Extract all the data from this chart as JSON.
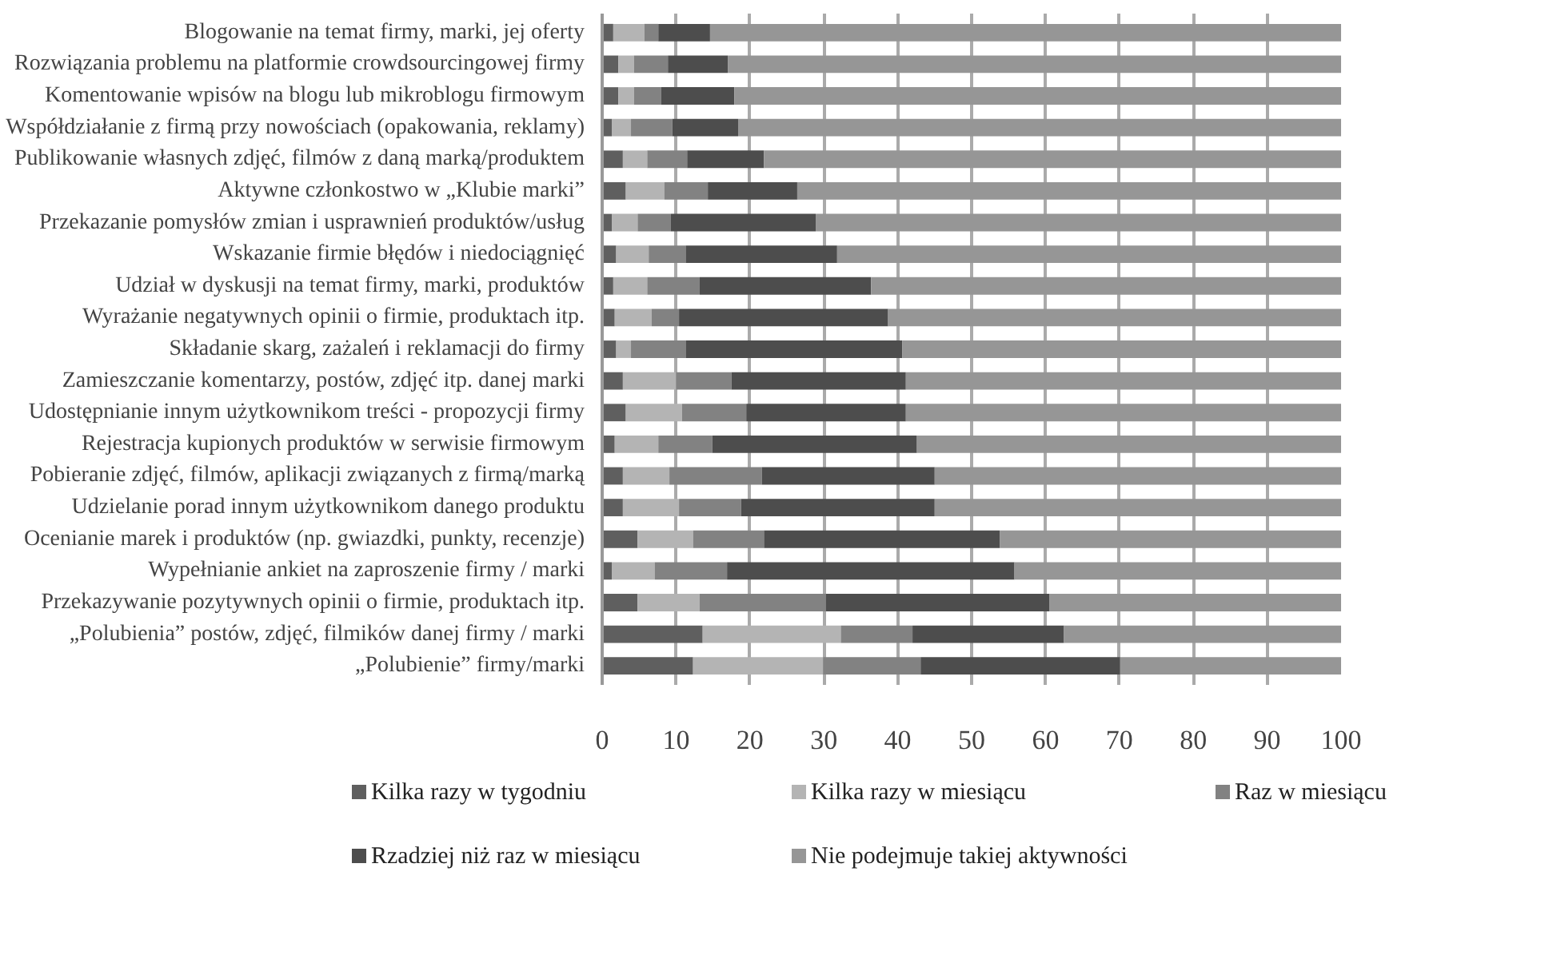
{
  "chart_data": {
    "type": "bar",
    "orientation": "horizontal",
    "stacked": true,
    "categories": [
      "Blogowanie na temat firmy, marki, jej oferty",
      "Rozwiązania problemu na platformie crowdsourcingowej firmy",
      "Komentowanie wpisów na blogu lub mikroblogu firmowym",
      "Współdziałanie z firmą przy nowościach (opakowania, reklamy)",
      "Publikowanie własnych zdjęć, filmów z daną marką/produktem",
      "Aktywne członkostwo w „Klubie marki”",
      "Przekazanie pomysłów zmian i usprawnień produktów/usług",
      "Wskazanie firmie błędów i niedociągnięć",
      "Udział w dyskusji na temat firmy, marki, produktów",
      "Wyrażanie negatywnych opinii o firmie, produktach itp.",
      "Składanie skarg, zażaleń i reklamacji do firmy",
      "Zamieszczanie komentarzy, postów, zdjęć itp. danej marki",
      "Udostępnianie innym użytkownikom treści - propozycji firmy",
      "Rejestracja kupionych produktów w serwisie firmowym",
      "Pobieranie zdjęć, filmów, aplikacji związanych z firmą/marką",
      "Udzielanie porad innym użytkownikom danego produktu",
      "Ocenianie marek i produktów (np. gwiazdki, punkty, recenzje)",
      "Wypełnianie ankiet na zaproszenie firmy / marki",
      "Przekazywanie pozytywnych opinii o firmie, produktach itp.",
      "„Polubienia” postów, zdjęć, filmików danej firmy / marki",
      "„Polubienie” firmy/marki"
    ],
    "series": [
      {
        "name": "Kilka razy w tygodniu",
        "color": "#5f5f5f",
        "values": [
          1.5,
          2.2,
          2.2,
          1.3,
          2.8,
          3.2,
          1.3,
          1.9,
          1.5,
          1.7,
          1.9,
          2.8,
          3.2,
          1.7,
          2.8,
          2.8,
          4.8,
          1.3,
          4.8,
          13.6,
          12.3
        ]
      },
      {
        "name": "Kilka razy w miesiącu",
        "color": "#b4b4b4",
        "values": [
          4.2,
          2.1,
          2.1,
          2.6,
          3.3,
          5.2,
          3.5,
          4.4,
          4.6,
          5.0,
          2.0,
          7.2,
          7.6,
          5.9,
          6.3,
          7.6,
          7.5,
          5.8,
          8.4,
          18.7,
          17.6
        ]
      },
      {
        "name": "Raz w miesiącu",
        "color": "#828282",
        "values": [
          1.9,
          4.6,
          3.7,
          5.6,
          5.4,
          5.9,
          4.5,
          5.0,
          7.1,
          3.7,
          7.4,
          7.5,
          8.7,
          7.3,
          12.5,
          8.4,
          9.6,
          9.8,
          17.1,
          9.7,
          13.2
        ]
      },
      {
        "name": "Rzadziej niż raz w miesiącu",
        "color": "#4d4d4d",
        "values": [
          7.0,
          8.1,
          9.9,
          8.9,
          10.4,
          12.1,
          19.6,
          20.5,
          23.2,
          28.3,
          29.3,
          23.6,
          21.6,
          27.7,
          23.4,
          26.2,
          31.9,
          38.9,
          30.2,
          20.5,
          27.0
        ]
      },
      {
        "name": "Nie podejmuje takiej aktywności",
        "color": "#969696",
        "values": [
          85.4,
          83.0,
          82.1,
          81.6,
          78.1,
          73.6,
          71.1,
          68.2,
          63.6,
          61.3,
          59.4,
          58.9,
          58.9,
          57.4,
          55.0,
          55.0,
          46.2,
          44.2,
          39.5,
          37.5,
          29.9
        ]
      }
    ],
    "xlim": [
      0,
      100
    ],
    "xticks": [
      0,
      10,
      20,
      30,
      40,
      50,
      60,
      70,
      80,
      90,
      100
    ],
    "grid": "x",
    "legend": "bottom"
  }
}
